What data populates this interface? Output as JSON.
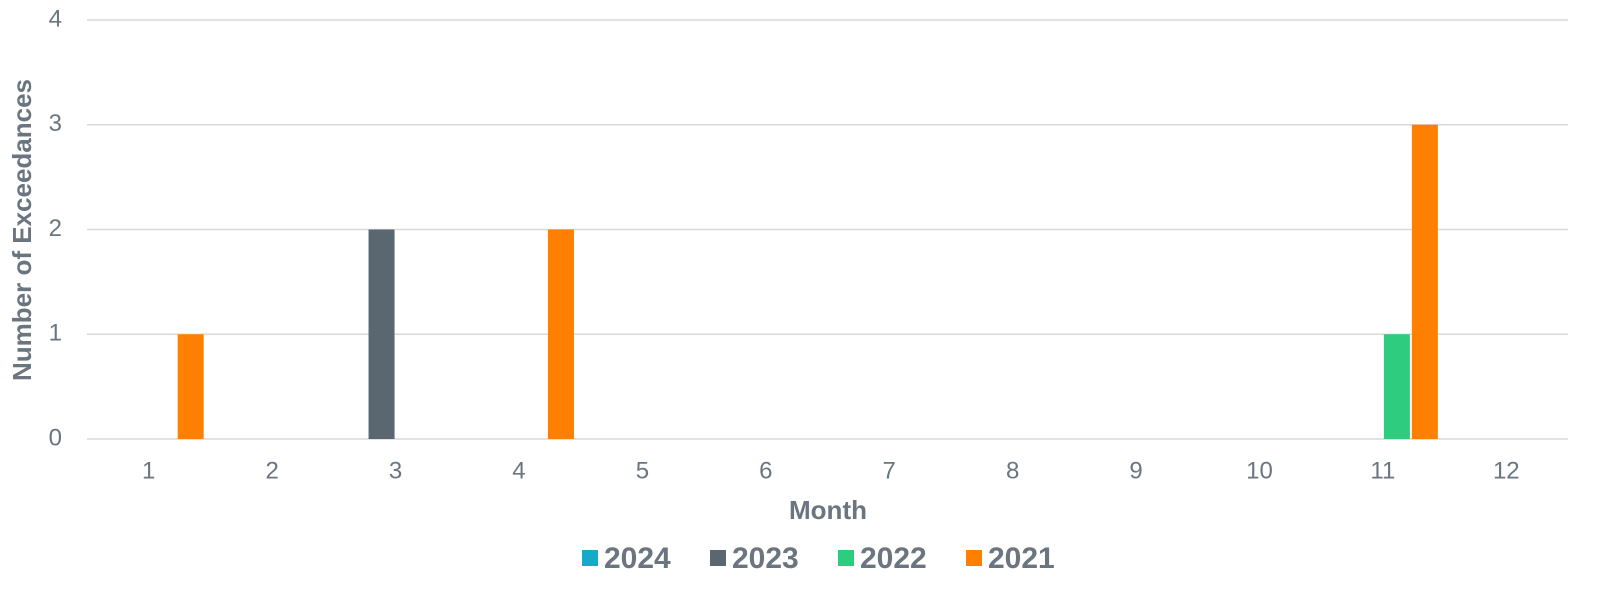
{
  "chart_data": {
    "type": "bar",
    "x_label": "Month",
    "y_label": "Number of Exceedances",
    "categories": [
      "1",
      "2",
      "3",
      "4",
      "5",
      "6",
      "7",
      "8",
      "9",
      "10",
      "11",
      "12"
    ],
    "series": [
      {
        "name": "2024",
        "color": "#17a9c8",
        "values": [
          0,
          0,
          0,
          0,
          0,
          0,
          0,
          0,
          0,
          0,
          0,
          0
        ]
      },
      {
        "name": "2023",
        "color": "#5a6670",
        "values": [
          0,
          0,
          2,
          0,
          0,
          0,
          0,
          0,
          0,
          0,
          0,
          0
        ]
      },
      {
        "name": "2022",
        "color": "#2ecc7f",
        "values": [
          0,
          0,
          0,
          0,
          0,
          0,
          0,
          0,
          0,
          0,
          1,
          0
        ]
      },
      {
        "name": "2021",
        "color": "#ff8000",
        "values": [
          1,
          0,
          0,
          2,
          0,
          0,
          0,
          0,
          0,
          0,
          3,
          0
        ]
      }
    ],
    "ylim": [
      0,
      4
    ],
    "yticks": [
      0,
      1,
      2,
      3,
      4
    ],
    "grid": true,
    "legend": "bottom"
  }
}
